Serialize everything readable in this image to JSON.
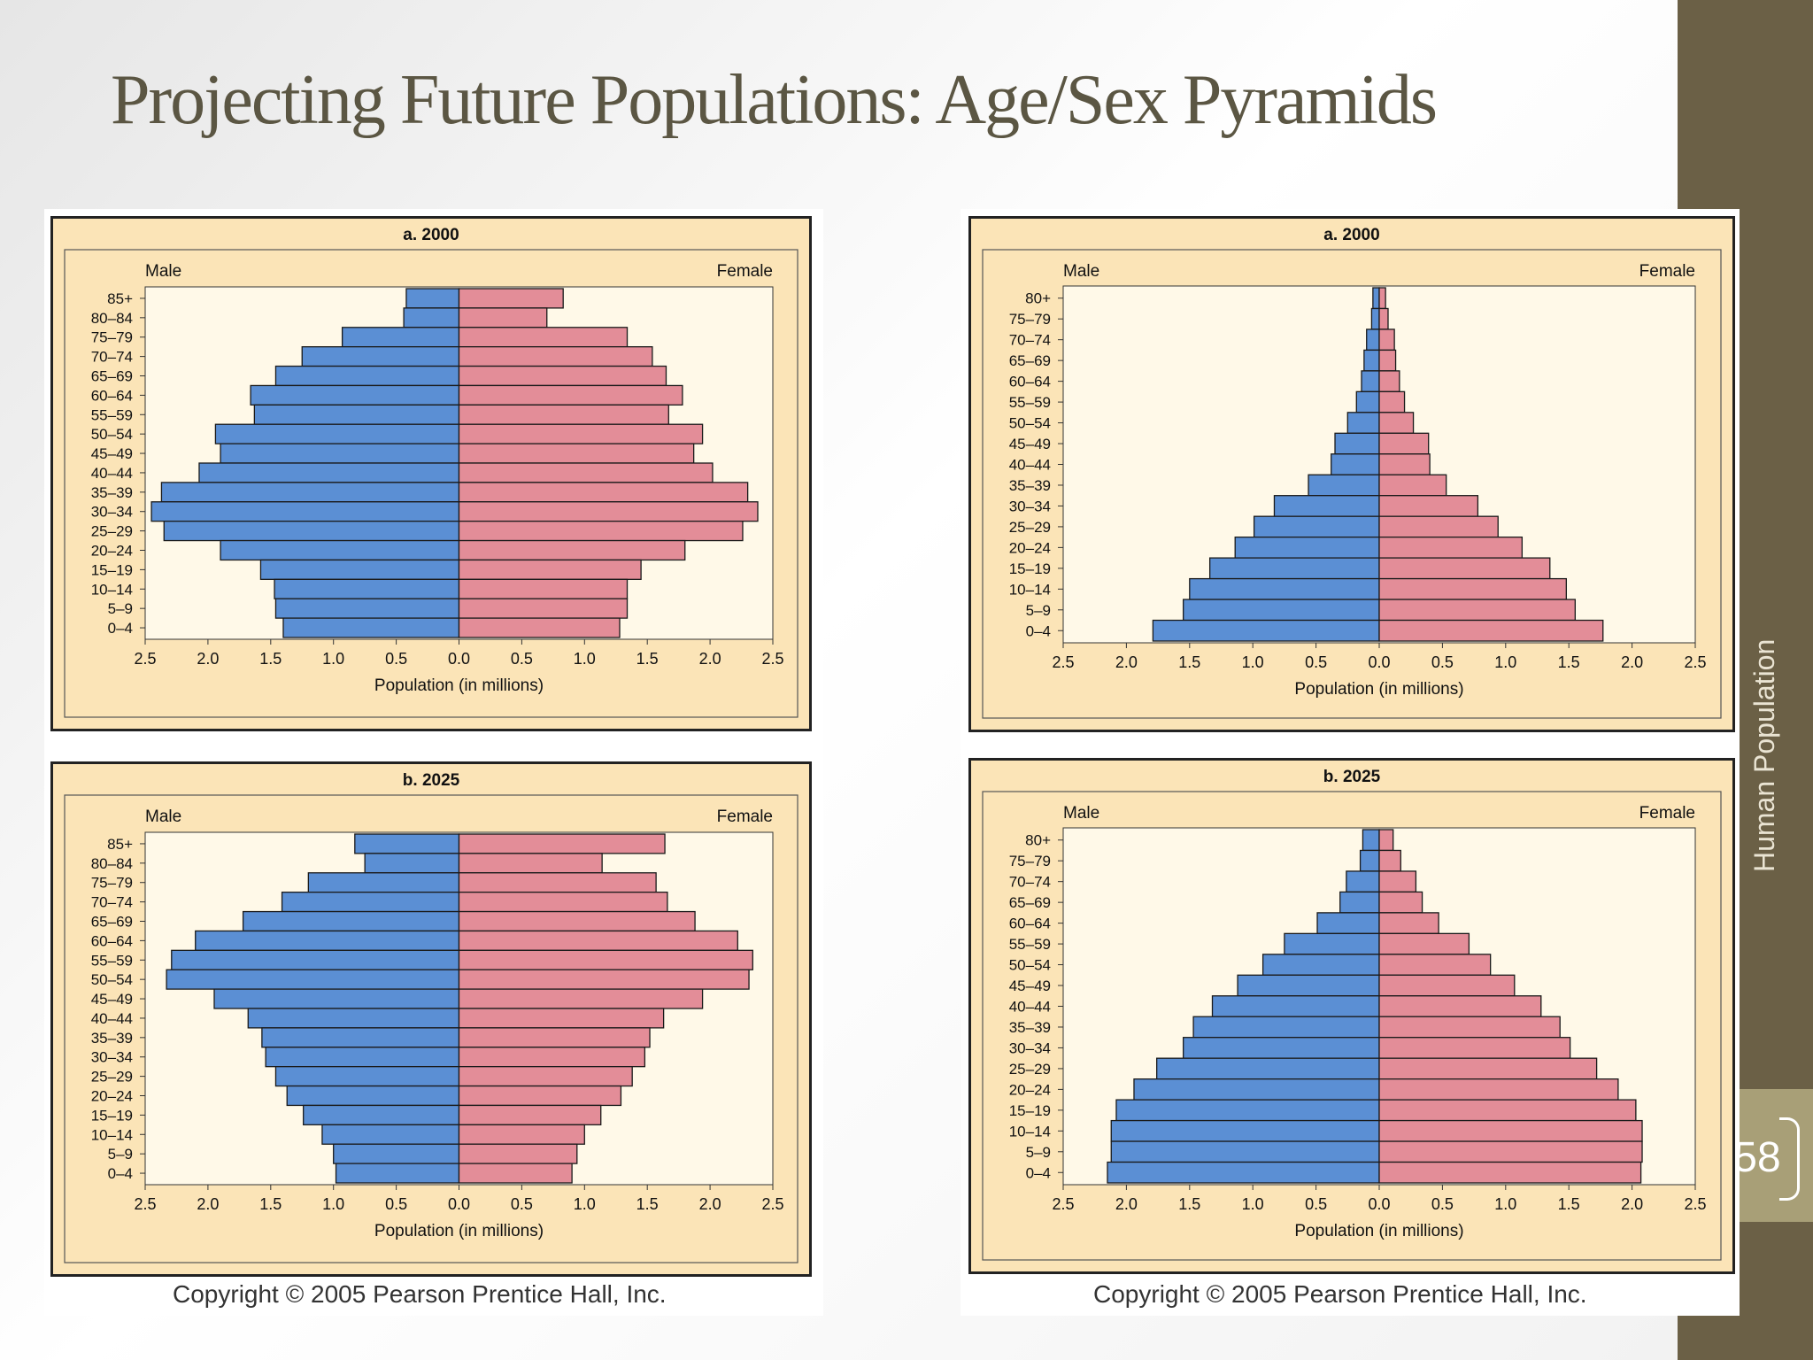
{
  "slide": {
    "title": "Projecting Future Populations:  Age/Sex Pyramids",
    "sidebar_label": "Human Population",
    "page_number": "58",
    "copyright_left": "Copyright © 2005 Pearson Prentice Hall, Inc.",
    "copyright_right": "Copyright © 2005 Pearson Prentice Hall, Inc."
  },
  "colors": {
    "male": "#5b8fd4",
    "female": "#e38d98",
    "frame_fill": "#fbe4b7",
    "plot_fill": "#fff9e8",
    "sidebar": "#6b6046",
    "title": "#5b5643"
  },
  "chart_data": [
    {
      "type": "bar",
      "title": "a. 2000",
      "left_label": "Male",
      "right_label": "Female",
      "xlabel": "Population (in millions)",
      "xlim": [
        -2.5,
        2.5
      ],
      "xticks": [
        "2.5",
        "2.0",
        "1.5",
        "1.0",
        "0.5",
        "0.0",
        "0.5",
        "1.0",
        "1.5",
        "2.0",
        "2.5"
      ],
      "categories": [
        "85+",
        "80–84",
        "75–79",
        "70–74",
        "65–69",
        "60–64",
        "55–59",
        "50–54",
        "45–49",
        "40–44",
        "35–39",
        "30–34",
        "25–29",
        "20–24",
        "15–19",
        "10–14",
        "5–9",
        "0–4"
      ],
      "series": [
        {
          "name": "Male",
          "values": [
            0.42,
            0.44,
            0.93,
            1.25,
            1.46,
            1.66,
            1.63,
            1.94,
            1.9,
            2.07,
            2.37,
            2.45,
            2.35,
            1.9,
            1.58,
            1.47,
            1.46,
            1.4
          ]
        },
        {
          "name": "Female",
          "values": [
            0.83,
            0.7,
            1.34,
            1.54,
            1.65,
            1.78,
            1.67,
            1.94,
            1.87,
            2.02,
            2.3,
            2.38,
            2.26,
            1.8,
            1.45,
            1.34,
            1.34,
            1.28
          ]
        }
      ]
    },
    {
      "type": "bar",
      "title": "a. 2000",
      "left_label": "Male",
      "right_label": "Female",
      "xlabel": "Population (in millions)",
      "xlim": [
        -2.5,
        2.5
      ],
      "xticks": [
        "2.5",
        "2.0",
        "1.5",
        "1.0",
        "0.5",
        "0.0",
        "0.5",
        "1.0",
        "1.5",
        "2.0",
        "2.5"
      ],
      "categories": [
        "80+",
        "75–79",
        "70–74",
        "65–69",
        "60–64",
        "55–59",
        "50–54",
        "45–49",
        "40–44",
        "35–39",
        "30–34",
        "25–29",
        "20–24",
        "15–19",
        "10–14",
        "5–9",
        "0–4"
      ],
      "series": [
        {
          "name": "Male",
          "values": [
            0.05,
            0.06,
            0.1,
            0.12,
            0.14,
            0.18,
            0.25,
            0.35,
            0.38,
            0.56,
            0.83,
            0.99,
            1.14,
            1.34,
            1.5,
            1.55,
            1.79
          ]
        },
        {
          "name": "Female",
          "values": [
            0.05,
            0.07,
            0.12,
            0.13,
            0.16,
            0.2,
            0.27,
            0.39,
            0.4,
            0.53,
            0.78,
            0.94,
            1.13,
            1.35,
            1.48,
            1.55,
            1.77
          ]
        }
      ]
    },
    {
      "type": "bar",
      "title": "b. 2025",
      "left_label": "Male",
      "right_label": "Female",
      "xlabel": "Population (in millions)",
      "xlim": [
        -2.5,
        2.5
      ],
      "xticks": [
        "2.5",
        "2.0",
        "1.5",
        "1.0",
        "0.5",
        "0.0",
        "0.5",
        "1.0",
        "1.5",
        "2.0",
        "2.5"
      ],
      "categories": [
        "85+",
        "80–84",
        "75–79",
        "70–74",
        "65–69",
        "60–64",
        "55–59",
        "50–54",
        "45–49",
        "40–44",
        "35–39",
        "30–34",
        "25–29",
        "20–24",
        "15–19",
        "10–14",
        "5–9",
        "0–4"
      ],
      "series": [
        {
          "name": "Male",
          "values": [
            0.83,
            0.75,
            1.2,
            1.41,
            1.72,
            2.1,
            2.29,
            2.33,
            1.95,
            1.68,
            1.57,
            1.54,
            1.46,
            1.37,
            1.24,
            1.09,
            1.0,
            0.98
          ]
        },
        {
          "name": "Female",
          "values": [
            1.64,
            1.14,
            1.57,
            1.66,
            1.88,
            2.22,
            2.34,
            2.31,
            1.94,
            1.63,
            1.52,
            1.48,
            1.38,
            1.29,
            1.13,
            1.0,
            0.94,
            0.9
          ]
        }
      ]
    },
    {
      "type": "bar",
      "title": "b. 2025",
      "left_label": "Male",
      "right_label": "Female",
      "xlabel": "Population (in millions)",
      "xlim": [
        -2.5,
        2.5
      ],
      "xticks": [
        "2.5",
        "2.0",
        "1.5",
        "1.0",
        "0.5",
        "0.0",
        "0.5",
        "1.0",
        "1.5",
        "2.0",
        "2.5"
      ],
      "categories": [
        "80+",
        "75–79",
        "70–74",
        "65–69",
        "60–64",
        "55–59",
        "50–54",
        "45–49",
        "40–44",
        "35–39",
        "30–34",
        "25–29",
        "20–24",
        "15–19",
        "10–14",
        "5–9",
        "0–4"
      ],
      "series": [
        {
          "name": "Male",
          "values": [
            0.13,
            0.15,
            0.26,
            0.31,
            0.49,
            0.75,
            0.92,
            1.12,
            1.32,
            1.47,
            1.55,
            1.76,
            1.94,
            2.08,
            2.12,
            2.12,
            2.15
          ]
        },
        {
          "name": "Female",
          "values": [
            0.11,
            0.17,
            0.29,
            0.34,
            0.47,
            0.71,
            0.88,
            1.07,
            1.28,
            1.43,
            1.51,
            1.72,
            1.89,
            2.03,
            2.08,
            2.08,
            2.07
          ]
        }
      ]
    }
  ]
}
